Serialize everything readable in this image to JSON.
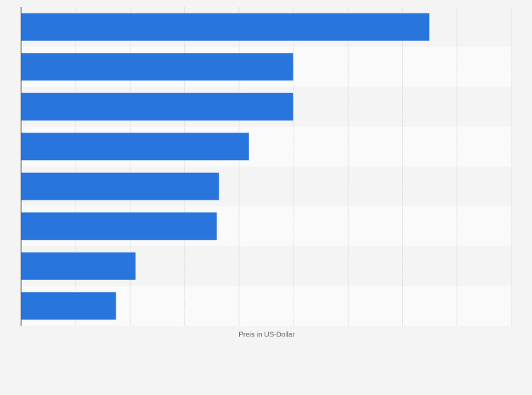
{
  "chart_data": {
    "type": "bar",
    "orientation": "horizontal",
    "x_label": "Preis in US-Dollar",
    "categories": [
      null,
      null,
      null,
      null,
      null,
      null,
      null,
      null
    ],
    "values": [
      7.49,
      4.99,
      4.99,
      4.18,
      3.63,
      3.59,
      2.1,
      1.74
    ],
    "color": "#2876dd",
    "xlim": [
      0,
      9
    ],
    "xticks": [
      0,
      1,
      2,
      3,
      4,
      5,
      6,
      7,
      8,
      9
    ],
    "grid": true
  }
}
